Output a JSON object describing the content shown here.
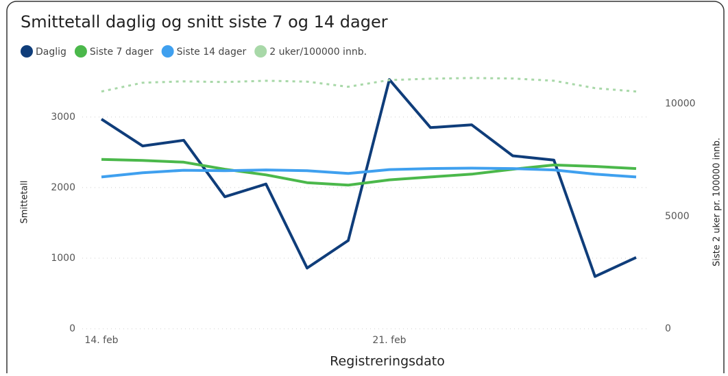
{
  "chart_data": {
    "type": "line",
    "title": "Smittetall daglig og snitt siste 7 og 14 dager",
    "x_label": "Registreringsdato",
    "y_label": "Smittetall",
    "y2_label": "Siste 2 uker pr. 100000 innb.",
    "categories": [
      "14. feb",
      null,
      null,
      null,
      null,
      null,
      null,
      "21. feb",
      null,
      null,
      null,
      null,
      null,
      null
    ],
    "series": [
      {
        "name": "Daglig",
        "color": "#0f3d7a",
        "values": [
          2970,
          2590,
          2670,
          1870,
          2050,
          860,
          1250,
          3530,
          2850,
          2890,
          2450,
          2390,
          740,
          1010
        ]
      },
      {
        "name": "Siste 7 dager",
        "color": "#4bb84b",
        "values": [
          2400,
          2385,
          2360,
          2260,
          2180,
          2070,
          2035,
          2110,
          2150,
          2190,
          2260,
          2320,
          2300,
          2270
        ]
      },
      {
        "name": "Siste 14 dager",
        "color": "#3fa0ef",
        "values": [
          2150,
          2210,
          2245,
          2240,
          2250,
          2240,
          2200,
          2255,
          2270,
          2275,
          2270,
          2250,
          2190,
          2150
        ]
      },
      {
        "name": "2 uker/100000 innb.",
        "color": "#a8d8a8",
        "axis": "y2",
        "dashed": true,
        "values": [
          10550,
          10940,
          11000,
          10970,
          11030,
          10990,
          10760,
          11060,
          11120,
          11150,
          11130,
          11030,
          10700,
          10550
        ]
      }
    ],
    "ylim": [
      0,
      3600
    ],
    "yticks": [
      0,
      1000,
      2000,
      3000
    ],
    "y2lim": [
      0,
      11300
    ],
    "y2ticks": [
      0,
      5000,
      10000
    ],
    "grid": true,
    "legend": "top-left"
  }
}
